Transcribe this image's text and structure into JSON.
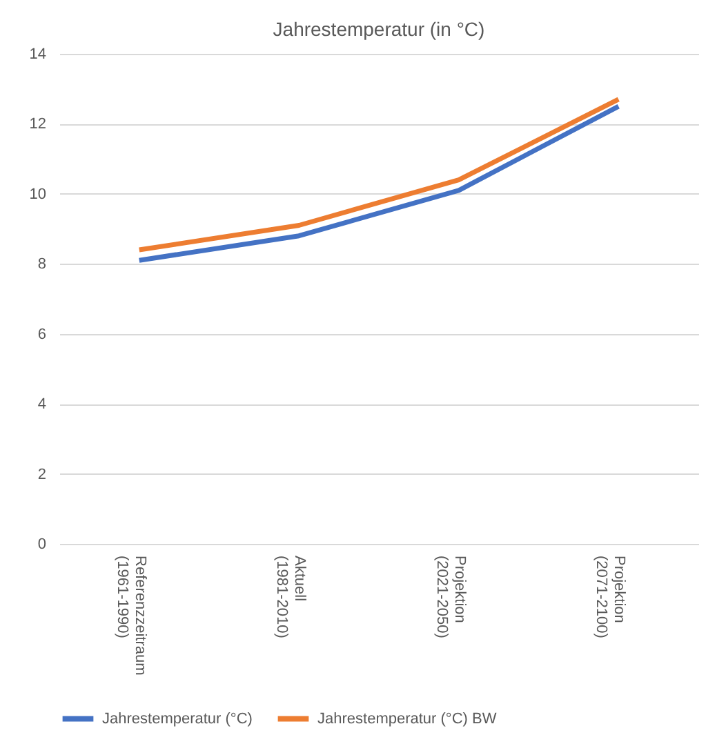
{
  "chart_data": {
    "type": "line",
    "title": "Jahrestemperatur (in °C)",
    "categories": [
      "Referenzzeitraum (1961-1990)",
      "Aktuell (1981-2010)",
      "Projektion (2021-2050)",
      "Projektion (2071-2100)"
    ],
    "series": [
      {
        "name": "Jahrestemperatur (°C)",
        "color": "#4472c4",
        "values": [
          8.1,
          8.8,
          10.1,
          12.5
        ]
      },
      {
        "name": "Jahrestemperatur (°C) BW",
        "color": "#ed7d31",
        "values": [
          8.4,
          9.1,
          10.4,
          12.7
        ]
      }
    ],
    "ylim": [
      0,
      14
    ],
    "yticks": [
      0,
      2,
      4,
      6,
      8,
      10,
      12,
      14
    ],
    "grid": "y",
    "legend": "bottom",
    "marker": "none",
    "line_style": "solid"
  }
}
